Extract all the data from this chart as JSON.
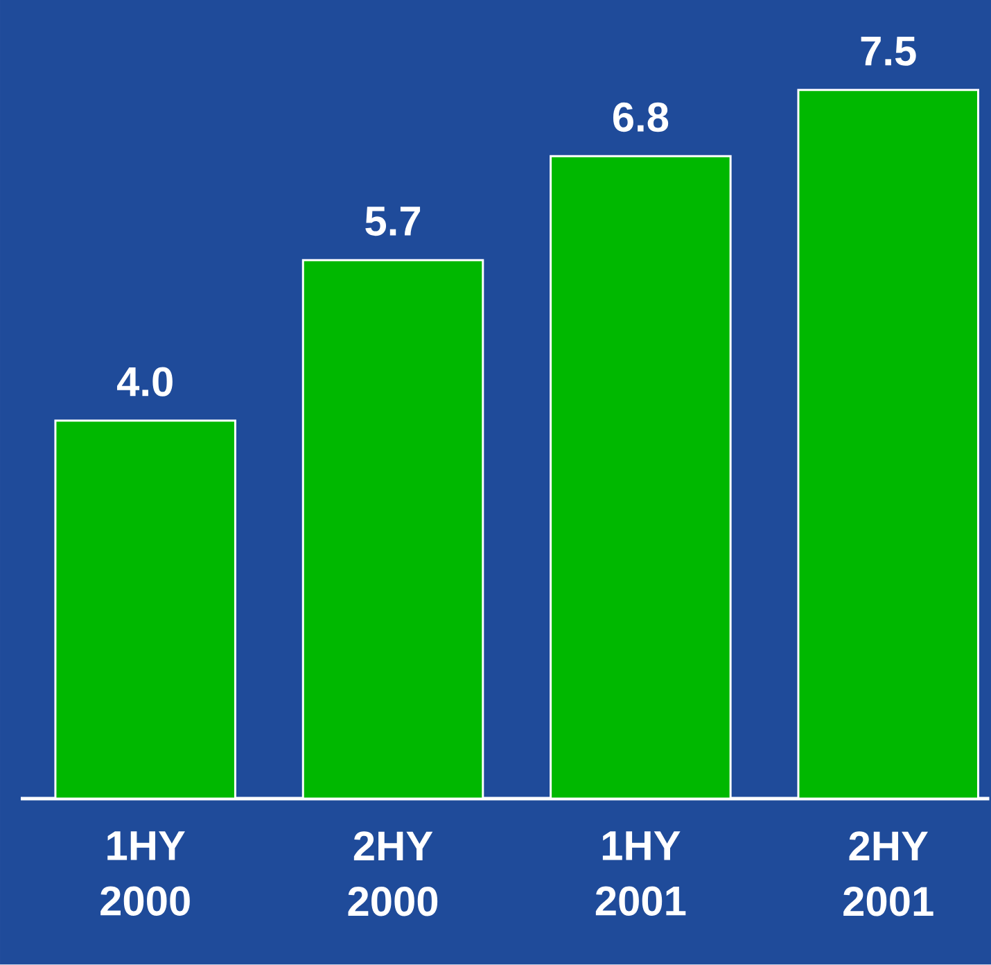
{
  "chart_data": {
    "type": "bar",
    "categories": [
      "1HY 2000",
      "2HY 2000",
      "1HY 2001",
      "2HY 2001"
    ],
    "values": [
      4.0,
      5.7,
      6.8,
      7.5
    ],
    "value_labels": [
      "4.0",
      "5.7",
      "6.8",
      "7.5"
    ],
    "color": "#00b800"
  }
}
